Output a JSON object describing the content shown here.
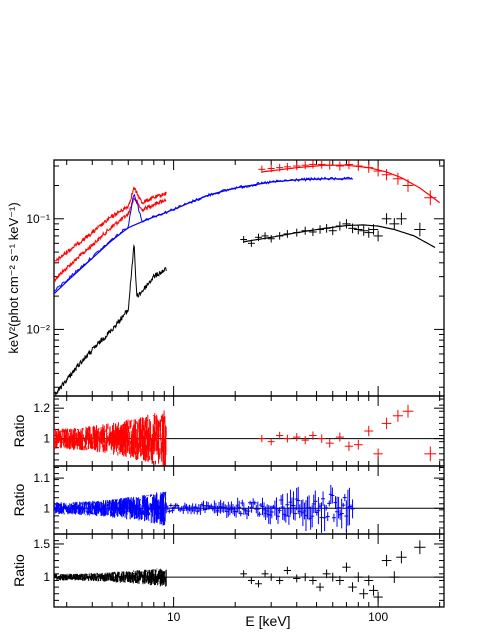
{
  "chart_data": [
    {
      "type": "scatter",
      "panel": "spectrum",
      "xscale": "log",
      "yscale": "log",
      "xlim": [
        2.6,
        210
      ],
      "ylim": [
        0.0025,
        0.34
      ],
      "ylabel": "keV²(phot cm⁻² s⁻¹ keV⁻¹)",
      "yticklabels": [
        "10⁻²",
        "10⁻¹"
      ],
      "yticks": [
        0.01,
        0.1
      ],
      "colors": {
        "red": "#ff0000",
        "blue": "#0000ff",
        "black": "#000000"
      },
      "series": [
        {
          "color": "red",
          "description_points": "upper spectrum, two low-energy tracks plus high-energy points",
          "low_a": {
            "x": [
              2.6,
              3,
              4,
              5,
              6,
              6.4,
              7,
              8,
              9.2
            ],
            "y": [
              0.028,
              0.036,
              0.058,
              0.085,
              0.11,
              0.155,
              0.12,
              0.135,
              0.15
            ]
          },
          "low_b": {
            "x": [
              2.6,
              3,
              4,
              5,
              6,
              6.4,
              7,
              8,
              9.2
            ],
            "y": [
              0.04,
              0.05,
              0.075,
              0.105,
              0.13,
              0.19,
              0.14,
              0.155,
              0.17
            ]
          },
          "points": {
            "x": [
              27,
              30,
              33,
              36,
              40,
              44,
              48,
              53,
              58,
              65,
              72,
              80,
              90,
              100,
              110,
              125,
              140,
              180
            ],
            "y": [
              0.28,
              0.285,
              0.29,
              0.295,
              0.3,
              0.305,
              0.31,
              0.31,
              0.305,
              0.3,
              0.31,
              0.3,
              0.29,
              0.27,
              0.25,
              0.23,
              0.2,
              0.155
            ]
          },
          "model": {
            "x": [
              27,
              40,
              55,
              70,
              90,
              110,
              130,
              160,
              200
            ],
            "y": [
              0.265,
              0.29,
              0.305,
              0.305,
              0.29,
              0.265,
              0.235,
              0.19,
              0.14
            ]
          }
        },
        {
          "color": "blue",
          "description_points": "continuum from 2.6 to 75 keV",
          "line": {
            "x": [
              2.6,
              3,
              4,
              5,
              6,
              6.4,
              7,
              8,
              9.2,
              12,
              15,
              20,
              30,
              40,
              55,
              75
            ],
            "y": [
              0.022,
              0.028,
              0.045,
              0.065,
              0.085,
              0.175,
              0.095,
              0.105,
              0.115,
              0.14,
              0.165,
              0.19,
              0.215,
              0.225,
              0.23,
              0.23
            ]
          },
          "model": {
            "x": [
              2.6,
              3,
              4,
              5,
              6,
              7,
              8,
              9.2,
              12,
              15,
              20,
              30,
              40,
              55,
              75
            ],
            "y": [
              0.021,
              0.027,
              0.044,
              0.064,
              0.083,
              0.094,
              0.104,
              0.114,
              0.14,
              0.165,
              0.19,
              0.215,
              0.225,
              0.23,
              0.23
            ]
          }
        },
        {
          "color": "black",
          "description_points": "lower spectrum: low-energy trace and high-energy points",
          "low": {
            "x": [
              2.6,
              3,
              3.5,
              4,
              5,
              6,
              6.4,
              6.6,
              7,
              8,
              9.2
            ],
            "y": [
              0.0025,
              0.0035,
              0.005,
              0.0065,
              0.01,
              0.015,
              0.06,
              0.02,
              0.022,
              0.03,
              0.035
            ]
          },
          "points": {
            "x": [
              22,
              24,
              26,
              28,
              30,
              33,
              36,
              40,
              44,
              48,
              52,
              56,
              60,
              65,
              70,
              75,
              80,
              85,
              90,
              95,
              100,
              110,
              120,
              130,
              160
            ],
            "y": [
              0.065,
              0.06,
              0.068,
              0.07,
              0.066,
              0.07,
              0.073,
              0.075,
              0.078,
              0.076,
              0.08,
              0.082,
              0.078,
              0.086,
              0.09,
              0.082,
              0.08,
              0.078,
              0.075,
              0.08,
              0.07,
              0.1,
              0.09,
              0.1,
              0.08
            ]
          },
          "model": {
            "x": [
              22,
              30,
              40,
              55,
              70,
              85,
              100,
              120,
              150,
              190
            ],
            "y": [
              0.062,
              0.068,
              0.075,
              0.082,
              0.087,
              0.088,
              0.086,
              0.08,
              0.07,
              0.055
            ]
          }
        }
      ]
    },
    {
      "type": "scatter",
      "panel": "ratio-red",
      "xscale": "log",
      "xlim": [
        2.6,
        210
      ],
      "ylim": [
        0.82,
        1.28
      ],
      "ylabel": "Ratio",
      "yticklabels": [
        "1",
        "1.2"
      ],
      "yticks": [
        1.0,
        1.2
      ],
      "color": "red",
      "points": {
        "x": [
          27,
          30,
          33,
          36,
          40,
          44,
          48,
          53,
          58,
          65,
          72,
          80,
          90,
          100,
          110,
          125,
          140,
          180
        ],
        "y": [
          1.0,
          0.98,
          1.02,
          1.0,
          1.01,
          0.99,
          1.02,
          1.0,
          0.97,
          1.01,
          0.95,
          0.96,
          1.05,
          0.9,
          1.1,
          1.15,
          1.18,
          0.9
        ]
      },
      "noise_band": {
        "x_range": [
          2.6,
          9.2
        ],
        "spread": [
          0.07,
          0.2
        ]
      }
    },
    {
      "type": "scatter",
      "panel": "ratio-blue",
      "xscale": "log",
      "xlim": [
        2.6,
        210
      ],
      "ylim": [
        0.915,
        1.14
      ],
      "ylabel": "Ratio",
      "yticklabels": [
        "1",
        "1.1"
      ],
      "yticks": [
        1.0,
        1.1
      ],
      "color": "blue",
      "points_range": [
        9.2,
        75
      ],
      "noise_band": {
        "x_range": [
          2.6,
          9.2
        ],
        "spread": [
          0.02,
          0.06
        ]
      }
    },
    {
      "type": "scatter",
      "panel": "ratio-black",
      "xscale": "log",
      "xlim": [
        2.6,
        210
      ],
      "ylim": [
        0.55,
        1.65
      ],
      "ylabel": "Ratio",
      "yticklabels": [
        "1",
        "1.5"
      ],
      "yticks": [
        1.0,
        1.5
      ],
      "color": "black",
      "points": {
        "x": [
          22,
          24,
          26,
          28,
          30,
          33,
          36,
          40,
          44,
          48,
          52,
          56,
          60,
          65,
          70,
          75,
          80,
          85,
          90,
          95,
          100,
          110,
          120,
          130,
          160
        ],
        "y": [
          1.05,
          0.95,
          0.9,
          1.05,
          1.0,
          0.95,
          1.1,
          0.98,
          1.0,
          0.95,
          0.85,
          1.05,
          1.0,
          0.95,
          1.15,
          0.85,
          1.0,
          0.75,
          0.95,
          0.8,
          0.7,
          1.25,
          1.0,
          1.3,
          1.45
        ]
      },
      "noise_band": {
        "x_range": [
          2.6,
          9.2
        ],
        "spread": [
          0.05,
          0.15
        ]
      }
    }
  ],
  "xaxis": {
    "label": "E [keV]",
    "ticklabels": [
      "10",
      "100"
    ],
    "ticks": [
      10,
      100
    ]
  }
}
